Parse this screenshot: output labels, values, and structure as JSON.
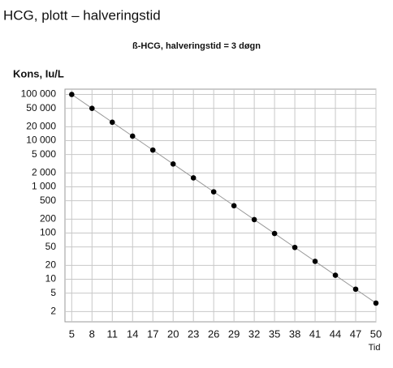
{
  "heading": "HCG, plott – halveringstid",
  "chart_data": {
    "type": "line",
    "title": "ß-HCG, halveringstid = 3 døgn",
    "y_label": "Kons, Iu/L",
    "x_label": "Tid",
    "x": [
      5,
      8,
      11,
      14,
      17,
      20,
      23,
      26,
      29,
      32,
      35,
      38,
      41,
      44,
      47,
      50
    ],
    "series": [
      {
        "name": "ß-HCG",
        "color": "#000000",
        "line_color": "#999999",
        "values": [
          100000,
          50000,
          25000,
          12500,
          6250,
          3125,
          1562.5,
          781.25,
          390.6,
          195.3,
          97.7,
          48.8,
          24.4,
          12.2,
          6.1,
          3.05
        ]
      }
    ],
    "xlim": [
      4,
      50
    ],
    "xticks": [
      5,
      8,
      11,
      14,
      17,
      20,
      23,
      26,
      29,
      32,
      35,
      38,
      41,
      44,
      47,
      50
    ],
    "ylim": [
      1.2,
      130000
    ],
    "log_y": true,
    "yticks": [
      {
        "value": 100000,
        "label": "100 000"
      },
      {
        "value": 50000,
        "label": "50 000"
      },
      {
        "value": 20000,
        "label": "20 000"
      },
      {
        "value": 10000,
        "label": "10 000"
      },
      {
        "value": 5000,
        "label": "5 000"
      },
      {
        "value": 2000,
        "label": "2 000"
      },
      {
        "value": 1000,
        "label": "1 000"
      },
      500,
      200,
      100,
      50,
      20,
      10,
      5,
      2
    ],
    "grid": true
  }
}
